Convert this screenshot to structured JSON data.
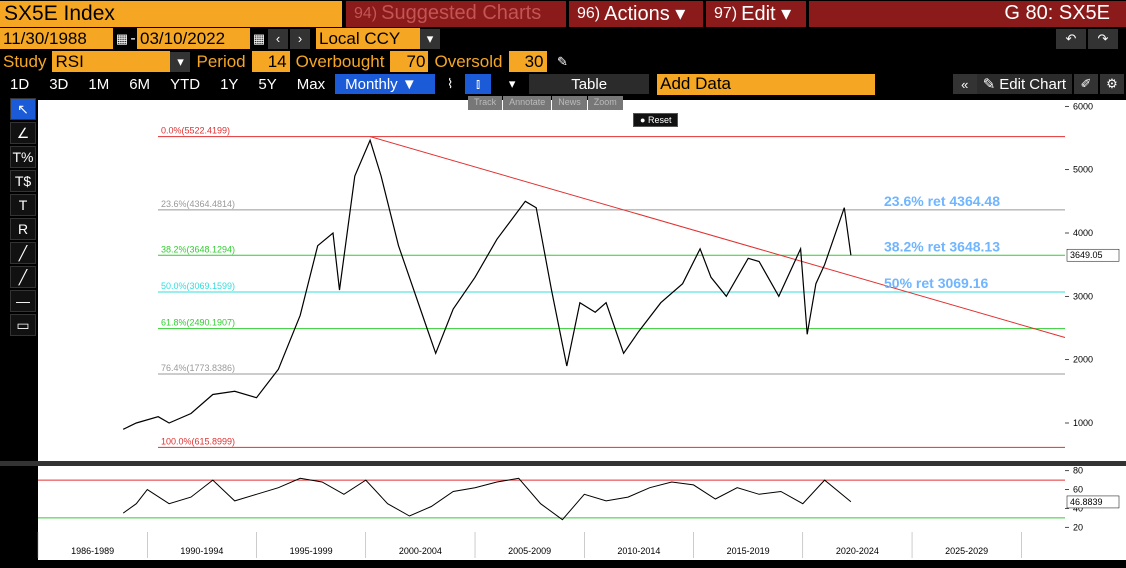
{
  "toolbar": {
    "ticker": "SX5E Index",
    "suggested_num": "94)",
    "suggested_label": "Suggested Charts",
    "actions_num": "96)",
    "actions_label": "Actions ▾",
    "edit_num": "97)",
    "edit_label": "Edit ▾",
    "function_code": "G 80: SX5E"
  },
  "range": {
    "start_date": "11/30/1988",
    "end_date": "03/10/2022",
    "currency": "Local CCY"
  },
  "study": {
    "label": "Study",
    "value": "RSI",
    "period_label": "Period",
    "period": "14",
    "overbought_label": "Overbought",
    "overbought": "70",
    "oversold_label": "Oversold",
    "oversold": "30"
  },
  "periods": [
    "1D",
    "3D",
    "1M",
    "6M",
    "YTD",
    "1Y",
    "5Y",
    "Max"
  ],
  "frequency": "Monthly ▼",
  "table_label": "Table",
  "add_data_placeholder": "Add Data",
  "edit_chart_label": "Edit Chart",
  "minibar": [
    "Track",
    "Annotate",
    "News",
    "Zoom"
  ],
  "reset_label": "Reset",
  "tools": [
    "↖",
    "∠",
    "T%",
    "T$",
    "T",
    "R",
    "╱",
    "╱",
    "—",
    "▭"
  ],
  "colors": {
    "accent": "#f5a623",
    "tab_red": "#8b1a1a",
    "active_blue": "#1c5bd8",
    "fib_red": "#e03030",
    "fib_green": "#33cc33",
    "fib_cyan": "#33dddd",
    "fib_gray": "#999999",
    "trend": "#e03030",
    "annot_blue": "#6fb5ff",
    "rsi_red": "#ff6666"
  },
  "chart_data": [
    {
      "type": "line",
      "series": [
        {
          "name": "SX5E",
          "x": [
            1988.9,
            1989.5,
            1990.5,
            1991,
            1992,
            1993,
            1994,
            1995,
            1996,
            1997,
            1997.8,
            1998.5,
            1998.8,
            1999.5,
            2000.2,
            2000.7,
            2001.5,
            2002.8,
            2003.2,
            2004,
            2005,
            2006,
            2007.3,
            2007.8,
            2008.5,
            2009.2,
            2009.8,
            2010.5,
            2011,
            2011.8,
            2012.5,
            2013.5,
            2014.5,
            2015.3,
            2015.8,
            2016.5,
            2017.5,
            2018,
            2018.9,
            2019.9,
            2020.2,
            2020.6,
            2021,
            2021.9,
            2022.2
          ],
          "values": [
            900,
            1000,
            1100,
            1000,
            1150,
            1450,
            1500,
            1400,
            1850,
            2700,
            3800,
            4000,
            3100,
            4900,
            5464,
            4900,
            3800,
            2500,
            2100,
            2800,
            3300,
            3900,
            4500,
            4400,
            3100,
            1900,
            2900,
            2750,
            2900,
            2100,
            2450,
            2900,
            3200,
            3750,
            3300,
            3000,
            3600,
            3550,
            3000,
            3750,
            2400,
            3200,
            3500,
            4400,
            3649
          ]
        }
      ],
      "fib_levels": [
        {
          "label": "0.0%(5522.4199)",
          "value": 5522.42
        },
        {
          "label": "23.6%(4364.4814)",
          "value": 4364.48
        },
        {
          "label": "38.2%(3648.1294)",
          "value": 3648.13
        },
        {
          "label": "50.0%(3069.1599)",
          "value": 3069.16
        },
        {
          "label": "61.8%(2490.1907)",
          "value": 2490.19
        },
        {
          "label": "76.4%(1773.8386)",
          "value": 1773.84
        },
        {
          "label": "100.0%(615.8999)",
          "value": 615.9
        }
      ],
      "annotations": [
        "23.6% ret 4364.48",
        "38.2% ret 3648.13",
        "50% ret 3069.16"
      ],
      "last_value_label": "3649.05",
      "y_ticks": [
        "1000",
        "2000",
        "3000",
        "4000",
        "5000",
        "6000"
      ],
      "y_tick_values": [
        1000,
        2000,
        3000,
        4000,
        5000,
        6000
      ],
      "ylim": [
        400,
        6100
      ],
      "trendline": {
        "x": [
          2000.2,
          2030
        ],
        "y": [
          5522,
          2350
        ]
      }
    },
    {
      "type": "line",
      "series": [
        {
          "name": "RSI",
          "x": [
            1988.9,
            1989.5,
            1990,
            1991,
            1992,
            1993,
            1994,
            1995,
            1996,
            1997,
            1998,
            1999,
            2000,
            2001,
            2002,
            2003,
            2004,
            2005,
            2006,
            2007,
            2008,
            2009,
            2010,
            2011,
            2012,
            2013,
            2014,
            2015,
            2016,
            2017,
            2018,
            2019,
            2020,
            2021,
            2022.2
          ],
          "values": [
            35,
            45,
            60,
            45,
            52,
            70,
            48,
            55,
            62,
            72,
            68,
            55,
            70,
            45,
            32,
            42,
            58,
            62,
            68,
            72,
            45,
            28,
            55,
            48,
            52,
            62,
            68,
            65,
            50,
            62,
            55,
            58,
            45,
            70,
            47
          ]
        }
      ],
      "overbought": 70,
      "oversold": 30,
      "last_value_label": "46.8839",
      "y_ticks": [
        "20",
        "40",
        "60",
        "80"
      ],
      "y_tick_values": [
        20,
        40,
        60,
        80
      ],
      "ylim": [
        15,
        85
      ],
      "x_ticks": [
        "1986-1989",
        "1990-1994",
        "1995-1999",
        "2000-2004",
        "2005-2009",
        "2010-2014",
        "2015-2019",
        "2020-2024",
        "2025-2029"
      ]
    }
  ]
}
